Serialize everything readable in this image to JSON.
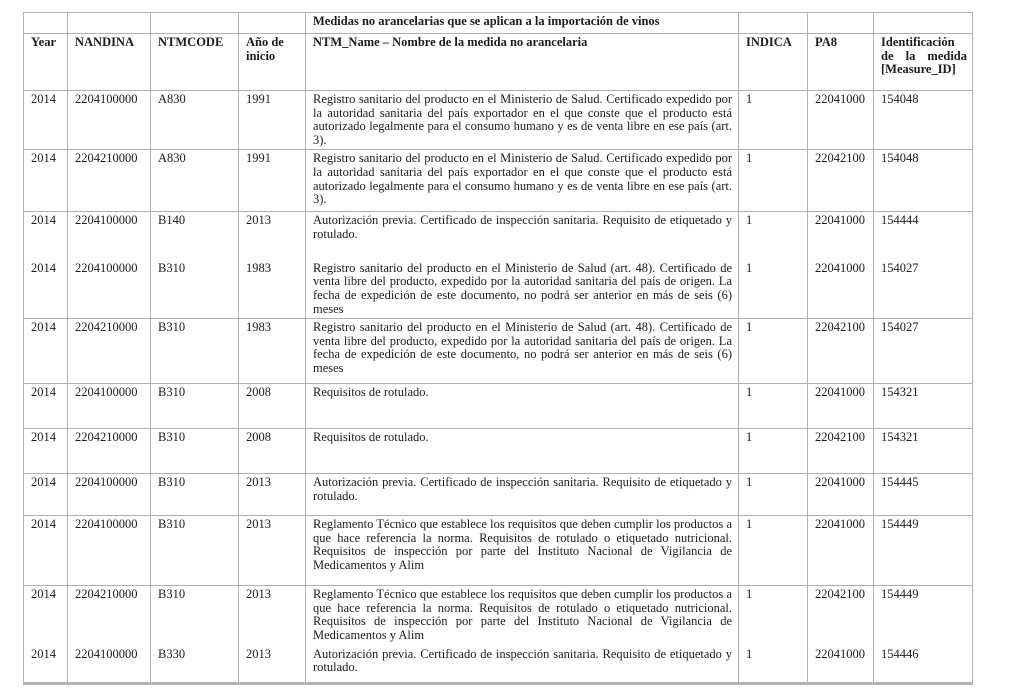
{
  "table": {
    "title": "Medidas no arancelarias que se aplican a la importación de vinos",
    "headers": {
      "year": "Year",
      "nandina": "NANDINA",
      "ntmcode": "NTMCODE",
      "ano_inicio": "Año de inicio",
      "ntm_name": "NTM_Name – Nombre de la medida no arancelaria",
      "indica": "INDICA",
      "pa8": "PA8",
      "measure_id": "Identificación de la medida [Measure_ID]"
    },
    "rows": [
      {
        "year": "2014",
        "nandina": "2204100000",
        "ntmcode": "A830",
        "ano_inicio": "1991",
        "ntm_name": "Registro sanitario del producto en el Ministerio de Salud. Certificado expedido por la autoridad sanitaria del país exportador en el que conste que el producto está autorizado legalmente para el consumo humano y es de venta libre en ese país (art. 3).",
        "indica": "1",
        "pa8": "22041000",
        "measure_id": "154048"
      },
      {
        "year": "2014",
        "nandina": "2204210000",
        "ntmcode": "A830",
        "ano_inicio": "1991",
        "ntm_name": "Registro sanitario del producto en el Ministerio de Salud. Certificado expedido por la autoridad sanitaria del país exportador en el que conste que el producto está autorizado legalmente para el consumo humano y es de venta libre en ese país (art. 3).",
        "indica": "1",
        "pa8": "22042100",
        "measure_id": "154048"
      },
      {
        "year": "2014",
        "nandina": "2204100000",
        "ntmcode": "B140",
        "ano_inicio": "2013",
        "ntm_name": "Autorización previa. Certificado de inspección sanitaria. Requisito de etiquetado y rotulado.",
        "indica": "1",
        "pa8": "22041000",
        "measure_id": "154444"
      },
      {
        "year": "2014",
        "nandina": "2204100000",
        "ntmcode": "B310",
        "ano_inicio": "1983",
        "ntm_name": "Registro sanitario del producto en el Ministerio de Salud (art. 48). Certificado de venta libre del producto, expedido por la autoridad sanitaria del país de origen. La fecha de expedición de este documento, no podrá ser anterior en más de seis (6) meses",
        "indica": "1",
        "pa8": "22041000",
        "measure_id": "154027"
      },
      {
        "year": "2014",
        "nandina": "2204210000",
        "ntmcode": "B310",
        "ano_inicio": "1983",
        "ntm_name": "Registro sanitario del producto en el Ministerio de Salud (art. 48). Certificado de venta libre del producto, expedido por la autoridad sanitaria del país de origen. La fecha de expedición de este documento, no podrá ser anterior en más de seis (6) meses",
        "indica": "1",
        "pa8": "22042100",
        "measure_id": "154027"
      },
      {
        "year": "2014",
        "nandina": "2204100000",
        "ntmcode": "B310",
        "ano_inicio": "2008",
        "ntm_name": "Requisitos de rotulado.",
        "indica": "1",
        "pa8": "22041000",
        "measure_id": "154321"
      },
      {
        "year": "2014",
        "nandina": "2204210000",
        "ntmcode": "B310",
        "ano_inicio": "2008",
        "ntm_name": "Requisitos de rotulado.",
        "indica": "1",
        "pa8": "22042100",
        "measure_id": "154321"
      },
      {
        "year": "2014",
        "nandina": "2204100000",
        "ntmcode": "B310",
        "ano_inicio": "2013",
        "ntm_name": "Autorización previa. Certificado de inspección sanitaria. Requisito de etiquetado y rotulado.",
        "indica": "1",
        "pa8": "22041000",
        "measure_id": "154445"
      },
      {
        "year": "2014",
        "nandina": "2204100000",
        "ntmcode": "B310",
        "ano_inicio": "2013",
        "ntm_name": "Reglamento Técnico que establece los requisitos que deben cumplir los productos a que hace referencia la norma. Requisitos de rotulado o etiquetado nutricional. Requisitos de inspección por parte del Instituto Nacional de Vigilancia de Medicamentos y Alim",
        "indica": "1",
        "pa8": "22041000",
        "measure_id": "154449"
      },
      {
        "year": "2014",
        "nandina": "2204210000",
        "ntmcode": "B310",
        "ano_inicio": "2013",
        "ntm_name": "Reglamento Técnico que establece los requisitos que deben cumplir los productos a que hace referencia la norma. Requisitos de rotulado o etiquetado nutricional. Requisitos de inspección por parte del Instituto Nacional de Vigilancia de Medicamentos y Alim",
        "indica": "1",
        "pa8": "22042100",
        "measure_id": "154449"
      },
      {
        "year": "2014",
        "nandina": "2204100000",
        "ntmcode": "B330",
        "ano_inicio": "2013",
        "ntm_name": "Autorización previa. Certificado de inspección sanitaria. Requisito de etiquetado y rotulado.",
        "indica": "1",
        "pa8": "22041000",
        "measure_id": "154446"
      }
    ]
  },
  "colors": {
    "outer_border": "#000000",
    "inner_border": "#b0b0b0",
    "text": "#1c1c1c",
    "background": "#ffffff"
  }
}
